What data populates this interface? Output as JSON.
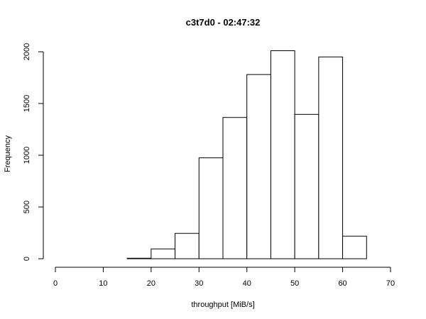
{
  "chart_data": {
    "type": "bar",
    "title": "c3t7d0 - 02:47:32",
    "xlabel": "throughput [MiB/s]",
    "ylabel": "Frequency",
    "xlim": [
      0,
      70
    ],
    "ylim": [
      0,
      2000
    ],
    "x_ticks": [
      0,
      10,
      20,
      30,
      40,
      50,
      60,
      70
    ],
    "y_ticks": [
      0,
      500,
      1000,
      1500,
      2000
    ],
    "bins": [
      {
        "start": 0,
        "end": 5,
        "count": 0
      },
      {
        "start": 5,
        "end": 10,
        "count": 0
      },
      {
        "start": 10,
        "end": 15,
        "count": 0
      },
      {
        "start": 15,
        "end": 20,
        "count": 5
      },
      {
        "start": 20,
        "end": 25,
        "count": 95
      },
      {
        "start": 25,
        "end": 30,
        "count": 245
      },
      {
        "start": 30,
        "end": 35,
        "count": 975
      },
      {
        "start": 35,
        "end": 40,
        "count": 1365
      },
      {
        "start": 40,
        "end": 45,
        "count": 1780
      },
      {
        "start": 45,
        "end": 50,
        "count": 2010
      },
      {
        "start": 50,
        "end": 55,
        "count": 1395
      },
      {
        "start": 55,
        "end": 60,
        "count": 1950
      },
      {
        "start": 60,
        "end": 65,
        "count": 218
      },
      {
        "start": 65,
        "end": 70,
        "count": 0
      }
    ],
    "grid": false,
    "legend": "none"
  }
}
